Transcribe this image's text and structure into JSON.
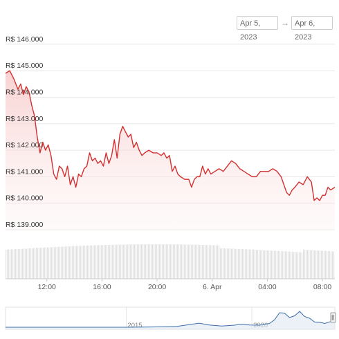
{
  "range": {
    "from": "Apr 5, 2023",
    "to": "Apr 6, 2023",
    "arrow": "→"
  },
  "colors": {
    "line": "#d32f2f",
    "fill": "#f7caca",
    "volume": "#e2e2e2",
    "navigator": "#3b6ea8",
    "grid": "#e8e8e8"
  },
  "chart_data": {
    "type": "line",
    "y_ticks": [
      "R$ 146.000",
      "R$ 145.000",
      "R$ 144.000",
      "R$ 143.000",
      "R$ 142.000",
      "R$ 141.000",
      "R$ 140.000",
      "R$ 139.000"
    ],
    "y_tick_values": [
      146000,
      145000,
      144000,
      143000,
      142000,
      141000,
      140000,
      139000
    ],
    "ylim": [
      139000,
      146000
    ],
    "x_ticks": [
      "12:00",
      "16:00",
      "20:00",
      "6. Apr",
      "04:00",
      "08:00"
    ],
    "x_tick_hours": [
      12,
      16,
      20,
      24,
      28,
      32
    ],
    "xlim_hours": [
      9.0,
      32.9
    ],
    "x_unit": "hours from Apr 5, 2023 00:00",
    "series": [
      {
        "values": [
          [
            9.0,
            144.9
          ],
          [
            9.3,
            145.0
          ],
          [
            9.6,
            144.7
          ],
          [
            9.9,
            144.3
          ],
          [
            10.1,
            144.5
          ],
          [
            10.3,
            144.1
          ],
          [
            10.5,
            144.4
          ],
          [
            10.7,
            144.2
          ],
          [
            10.9,
            143.7
          ],
          [
            11.1,
            143.3
          ],
          [
            11.3,
            142.5
          ],
          [
            11.5,
            141.9
          ],
          [
            11.7,
            142.3
          ],
          [
            11.9,
            142.0
          ],
          [
            12.1,
            142.2
          ],
          [
            12.3,
            141.8
          ],
          [
            12.5,
            141.1
          ],
          [
            12.7,
            140.9
          ],
          [
            12.9,
            141.4
          ],
          [
            13.1,
            141.3
          ],
          [
            13.3,
            141.0
          ],
          [
            13.5,
            141.4
          ],
          [
            13.7,
            140.7
          ],
          [
            13.9,
            141.0
          ],
          [
            14.1,
            140.6
          ],
          [
            14.3,
            141.1
          ],
          [
            14.5,
            141.0
          ],
          [
            14.7,
            141.3
          ],
          [
            14.9,
            141.4
          ],
          [
            15.1,
            141.9
          ],
          [
            15.3,
            141.6
          ],
          [
            15.5,
            141.7
          ],
          [
            15.7,
            141.5
          ],
          [
            15.9,
            141.6
          ],
          [
            16.1,
            141.4
          ],
          [
            16.3,
            141.9
          ],
          [
            16.5,
            141.5
          ],
          [
            16.7,
            141.8
          ],
          [
            16.9,
            142.4
          ],
          [
            17.1,
            141.7
          ],
          [
            17.3,
            142.6
          ],
          [
            17.5,
            142.9
          ],
          [
            17.7,
            142.7
          ],
          [
            17.9,
            142.5
          ],
          [
            18.1,
            142.6
          ],
          [
            18.3,
            142.1
          ],
          [
            18.5,
            142.3
          ],
          [
            18.7,
            142.0
          ],
          [
            18.9,
            141.8
          ],
          [
            19.1,
            141.9
          ],
          [
            19.4,
            142.0
          ],
          [
            19.7,
            141.9
          ],
          [
            20.0,
            141.9
          ],
          [
            20.3,
            141.8
          ],
          [
            20.5,
            141.9
          ],
          [
            20.7,
            141.7
          ],
          [
            20.9,
            141.8
          ],
          [
            21.1,
            141.2
          ],
          [
            21.3,
            141.4
          ],
          [
            21.5,
            141.1
          ],
          [
            21.7,
            141.0
          ],
          [
            22.0,
            140.9
          ],
          [
            22.3,
            140.9
          ],
          [
            22.5,
            140.6
          ],
          [
            22.7,
            140.9
          ],
          [
            22.9,
            141.0
          ],
          [
            23.1,
            141.0
          ],
          [
            23.3,
            141.4
          ],
          [
            23.5,
            141.1
          ],
          [
            23.7,
            141.3
          ],
          [
            23.9,
            141.1
          ],
          [
            24.2,
            141.2
          ],
          [
            24.5,
            141.3
          ],
          [
            24.8,
            141.2
          ],
          [
            25.1,
            141.4
          ],
          [
            25.4,
            141.6
          ],
          [
            25.7,
            141.5
          ],
          [
            26.0,
            141.3
          ],
          [
            26.3,
            141.2
          ],
          [
            26.6,
            141.1
          ],
          [
            26.9,
            141.0
          ],
          [
            27.2,
            141.0
          ],
          [
            27.5,
            141.2
          ],
          [
            27.8,
            141.2
          ],
          [
            28.1,
            141.2
          ],
          [
            28.4,
            141.3
          ],
          [
            28.7,
            141.2
          ],
          [
            29.0,
            141.0
          ],
          [
            29.2,
            140.7
          ],
          [
            29.4,
            140.4
          ],
          [
            29.6,
            140.3
          ],
          [
            29.8,
            140.5
          ],
          [
            30.0,
            140.6
          ],
          [
            30.3,
            140.8
          ],
          [
            30.6,
            140.7
          ],
          [
            30.9,
            141.0
          ],
          [
            31.2,
            140.8
          ],
          [
            31.4,
            140.1
          ],
          [
            31.6,
            140.2
          ],
          [
            31.8,
            140.1
          ],
          [
            32.0,
            140.3
          ],
          [
            32.2,
            140.3
          ],
          [
            32.4,
            140.6
          ],
          [
            32.6,
            140.5
          ],
          [
            32.9,
            140.6
          ]
        ]
      }
    ],
    "navigator": {
      "labels": [
        "2015",
        "2020"
      ],
      "label_years": [
        2015,
        2020
      ],
      "xlim_years": [
        2010.2,
        2023.3
      ],
      "values": [
        [
          2010.2,
          0
        ],
        [
          2012.0,
          0
        ],
        [
          2013.0,
          0
        ],
        [
          2014.0,
          0
        ],
        [
          2015.0,
          0
        ],
        [
          2016.0,
          0.01
        ],
        [
          2017.0,
          0.03
        ],
        [
          2017.9,
          0.16
        ],
        [
          2018.3,
          0.09
        ],
        [
          2018.8,
          0.05
        ],
        [
          2019.3,
          0.08
        ],
        [
          2019.6,
          0.12
        ],
        [
          2019.9,
          0.09
        ],
        [
          2020.3,
          0.08
        ],
        [
          2020.7,
          0.15
        ],
        [
          2020.9,
          0.29
        ],
        [
          2021.1,
          0.57
        ],
        [
          2021.3,
          0.55
        ],
        [
          2021.5,
          0.38
        ],
        [
          2021.7,
          0.45
        ],
        [
          2021.9,
          0.62
        ],
        [
          2022.1,
          0.42
        ],
        [
          2022.3,
          0.35
        ],
        [
          2022.5,
          0.2
        ],
        [
          2022.7,
          0.19
        ],
        [
          2022.9,
          0.15
        ],
        [
          2023.1,
          0.21
        ],
        [
          2023.3,
          0.26
        ]
      ]
    }
  }
}
